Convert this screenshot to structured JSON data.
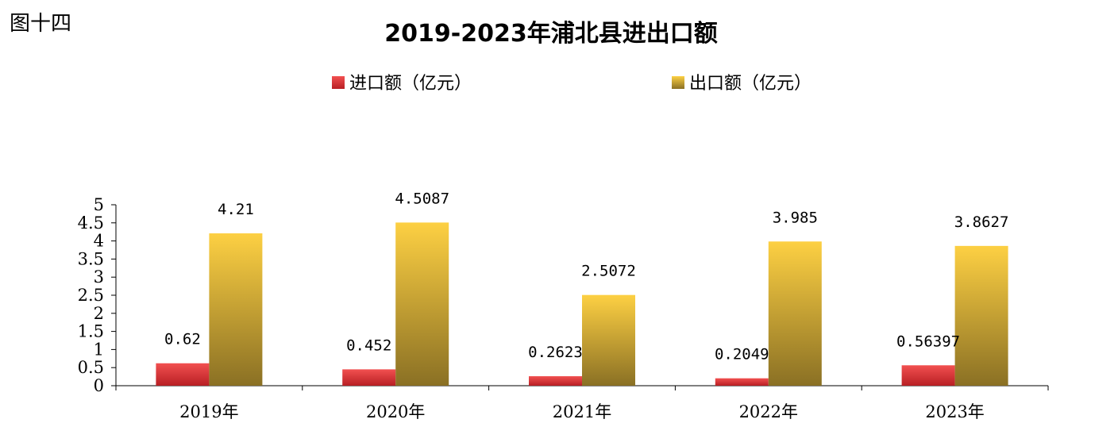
{
  "figure_label": "图十四",
  "colors": {
    "import_top": "#f25050",
    "import_bottom": "#b81f24",
    "export_top": "#fdd043",
    "export_bottom": "#8a7024",
    "axis": "#000000"
  },
  "chart_data": {
    "type": "bar",
    "title": "2019-2023年浦北县进出口额",
    "categories": [
      "2019年",
      "2020年",
      "2021年",
      "2022年",
      "2023年"
    ],
    "series": [
      {
        "name": "进口额（亿元）",
        "values": [
          0.62,
          0.452,
          0.2623,
          0.2049,
          0.56397
        ],
        "labels": [
          "0.62",
          "0.452",
          "0.2623",
          "0.2049",
          "0.56397"
        ]
      },
      {
        "name": "出口额（亿元）",
        "values": [
          4.21,
          4.5087,
          2.5072,
          3.985,
          3.8627
        ],
        "labels": [
          "4.21",
          "4.5087",
          "2.5072",
          "3.985",
          "3.8627"
        ]
      }
    ],
    "ylim": [
      0,
      5
    ],
    "yticks": [
      "0",
      "0.5",
      "1",
      "1.5",
      "2",
      "2.5",
      "3",
      "3.5",
      "4",
      "4.5",
      "5"
    ],
    "xlabel": "",
    "ylabel": "",
    "grid": false,
    "legend_position": "top"
  }
}
